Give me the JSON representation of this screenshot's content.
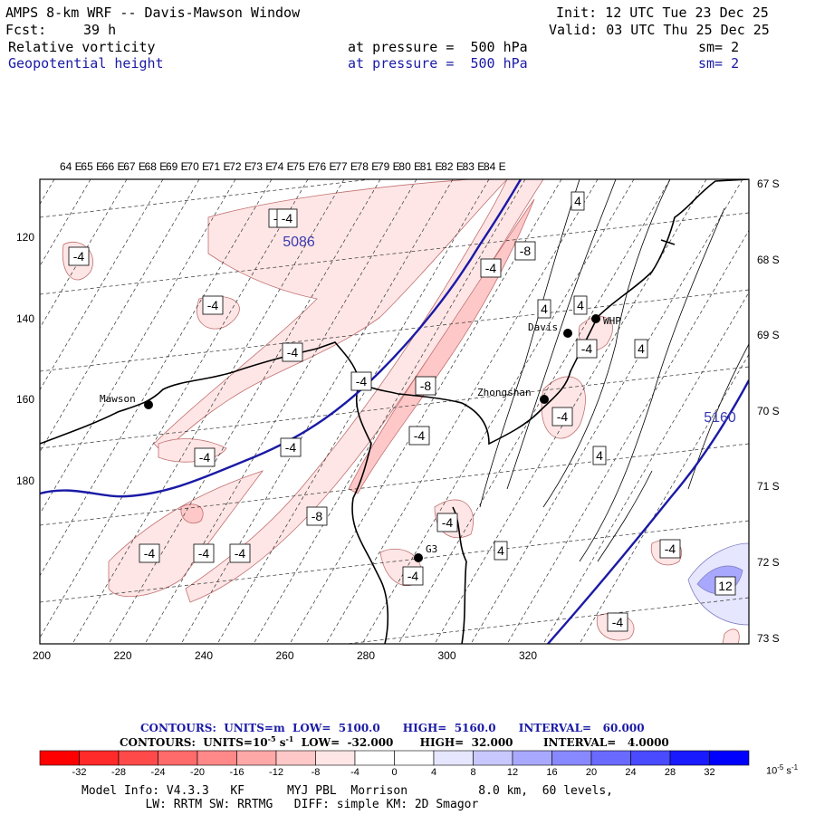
{
  "header": {
    "title": "AMPS 8-km WRF -- Davis-Mawson Window",
    "init": "Init: 12 UTC Tue 23 Dec 25",
    "fcst_label": "Fcst:",
    "fcst_value": "39 h",
    "valid": "Valid: 03 UTC Thu 25 Dec 25",
    "field1": "Relative vorticity",
    "field1_level": "at pressure =  500 hPa",
    "field1_sm": "sm= 2",
    "field2": "Geopotential height",
    "field2_level": "at pressure =  500 hPa",
    "field2_sm": "sm= 2"
  },
  "map": {
    "lon_labels": [
      "64 E",
      "65 E",
      "66 E",
      "67 E",
      "68 E",
      "69 E",
      "70 E",
      "71 E",
      "72 E",
      "73 E",
      "74 E",
      "75 E",
      "76 E",
      "77 E",
      "78 E",
      "79 E",
      "80 E",
      "81 E",
      "82 E",
      "83 E",
      "84 E"
    ],
    "lat_labels": [
      "67 S",
      "68 S",
      "69 S",
      "70 S",
      "71 S",
      "72 S",
      "73 S"
    ],
    "x_ticks": [
      "200",
      "220",
      "240",
      "260",
      "280",
      "300",
      "320"
    ],
    "y_ticks": [
      "120",
      "140",
      "160",
      "180"
    ],
    "stations": [
      {
        "name": "Mawson"
      },
      {
        "name": "Davis"
      },
      {
        "name": "WHP"
      },
      {
        "name": "Zhongshan"
      },
      {
        "name": "G3"
      }
    ],
    "height_labels": [
      "5086",
      "5160"
    ],
    "vort_labels": [
      "-4",
      "-4",
      "-4",
      "-4",
      "-4",
      "-4",
      "-4",
      "-4",
      "-4",
      "-4",
      "-4",
      "-4",
      "-4",
      "-4",
      "-4",
      "-8",
      "-8",
      "-8",
      "-4",
      "-4",
      "4",
      "4",
      "4",
      "4",
      "4",
      "4",
      "12",
      "-4",
      "-4"
    ]
  },
  "contour_info": {
    "line1": "CONTOURS:  UNITS=m  LOW=  5100.0      HIGH=  5160.0      INTERVAL=   60.000",
    "line2": "CONTOURS:  UNITS=10",
    "line2_exp": "-5",
    "line2_unit": " s",
    "line2_unit_exp": "-1",
    "line2_rest": "  LOW=  -32.000       HIGH=  32.000        INTERVAL=   4.0000"
  },
  "colorbar": {
    "labels": [
      "-32",
      "-28",
      "-24",
      "-20",
      "-16",
      "-12",
      "-8",
      "-4",
      "0",
      "4",
      "8",
      "12",
      "16",
      "20",
      "24",
      "28",
      "32"
    ],
    "units": "10",
    "units_exp": "-5",
    "units_s": " s",
    "units_s_exp": "-1",
    "colors": [
      "#ff0000",
      "#ff2a2a",
      "#ff4a4a",
      "#ff6a6a",
      "#ff8888",
      "#ffa8a8",
      "#ffc8c8",
      "#ffe6e6",
      "#ffffff",
      "#ffffff",
      "#e6e6ff",
      "#c8c8ff",
      "#a8a8ff",
      "#8888ff",
      "#6a6aff",
      "#4a4aff",
      "#1a1aff",
      "#0000ff"
    ]
  },
  "model_info": {
    "line1": "Model Info: V4.3.3   KF      MYJ PBL  Morrison          8.0 km,  60 levels,",
    "line2": "         LW: RRTM SW: RRTMG   DIFF: simple KM: 2D Smagor"
  }
}
